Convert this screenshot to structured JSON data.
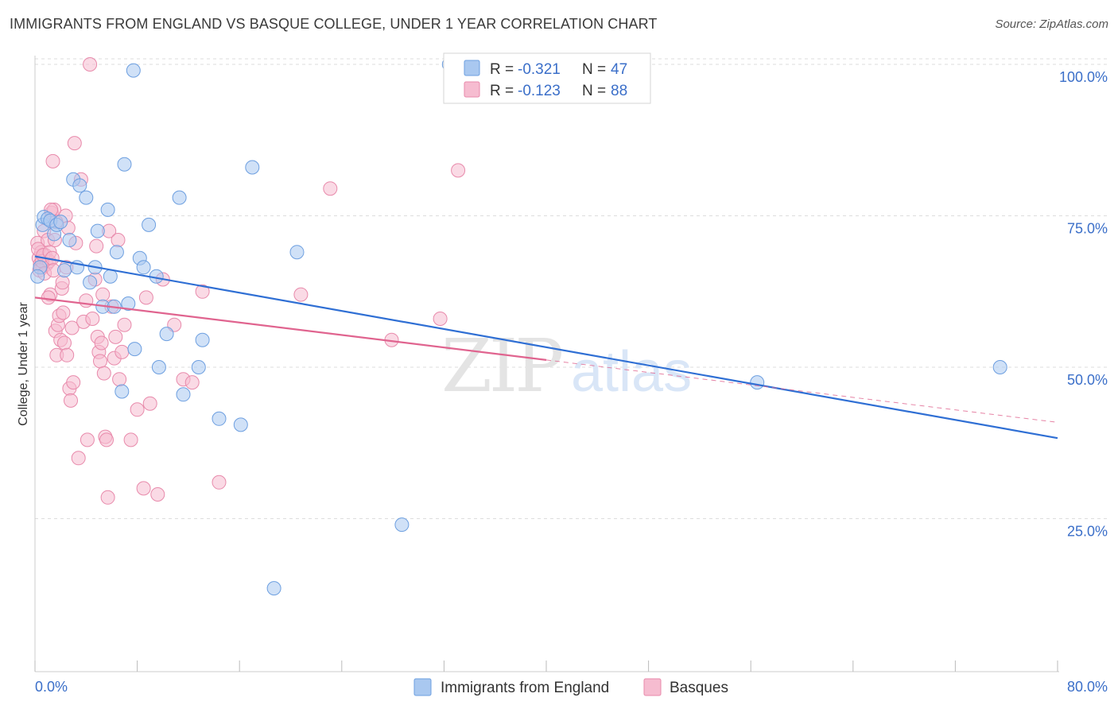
{
  "title": "IMMIGRANTS FROM ENGLAND VS BASQUE COLLEGE, UNDER 1 YEAR CORRELATION CHART",
  "source": "Source: ZipAtlas.com",
  "watermark": {
    "zip": "ZIP",
    "atlas": "atlas"
  },
  "colors": {
    "england_fill": "#a9c8f0",
    "england_stroke": "#6d9fe0",
    "england_line": "#2f6fd4",
    "basques_fill": "#f6bcd0",
    "basques_stroke": "#e88aab",
    "basques_line": "#e0648f",
    "tick_label": "#3b6fc9",
    "grid": "#dddddd"
  },
  "legend": {
    "rows": [
      {
        "r_label": "R = ",
        "r_value": "-0.321",
        "n_label": "N = ",
        "n_value": "47"
      },
      {
        "r_label": "R = ",
        "r_value": "-0.123",
        "n_label": "N = ",
        "n_value": "88"
      }
    ]
  },
  "chart_data": {
    "type": "scatter",
    "title": "IMMIGRANTS FROM ENGLAND VS BASQUE COLLEGE, UNDER 1 YEAR CORRELATION CHART",
    "xlabel": "",
    "ylabel": "College, Under 1 year",
    "xlim": [
      0,
      80
    ],
    "ylim": [
      0,
      105
    ],
    "x_tick_labels": [
      "0.0%",
      "80.0%"
    ],
    "y_ticks": [
      25,
      50,
      75,
      100
    ],
    "y_tick_labels": [
      "25.0%",
      "50.0%",
      "75.0%",
      "100.0%"
    ],
    "grid": true,
    "legend_position": "top-center",
    "series": [
      {
        "name": "Immigrants from England",
        "r": -0.321,
        "n": 47,
        "trend": {
          "x": [
            0,
            80
          ],
          "y": [
            68.3,
            38.3
          ]
        },
        "points": [
          [
            0.4,
            66.5
          ],
          [
            0.6,
            73.5
          ],
          [
            0.7,
            74.8
          ],
          [
            1.0,
            74.5
          ],
          [
            1.2,
            74.2
          ],
          [
            1.5,
            72.0
          ],
          [
            1.7,
            73.5
          ],
          [
            2.0,
            74.0
          ],
          [
            2.3,
            66.0
          ],
          [
            2.7,
            71.0
          ],
          [
            3.0,
            81.0
          ],
          [
            3.5,
            80.0
          ],
          [
            4.0,
            78.0
          ],
          [
            4.3,
            64.0
          ],
          [
            4.7,
            66.5
          ],
          [
            4.9,
            72.5
          ],
          [
            5.3,
            60.0
          ],
          [
            5.7,
            76.0
          ],
          [
            5.9,
            65.0
          ],
          [
            6.2,
            60.0
          ],
          [
            6.4,
            69.0
          ],
          [
            6.8,
            46.0
          ],
          [
            7.0,
            83.5
          ],
          [
            7.3,
            60.5
          ],
          [
            7.8,
            53.0
          ],
          [
            7.7,
            99.0
          ],
          [
            8.2,
            68.0
          ],
          [
            8.5,
            66.5
          ],
          [
            8.9,
            73.5
          ],
          [
            9.5,
            65.0
          ],
          [
            9.7,
            50.0
          ],
          [
            10.3,
            55.5
          ],
          [
            11.3,
            78.0
          ],
          [
            11.6,
            45.5
          ],
          [
            12.8,
            50.0
          ],
          [
            13.1,
            54.5
          ],
          [
            14.4,
            41.5
          ],
          [
            16.1,
            40.5
          ],
          [
            17.0,
            83.0
          ],
          [
            18.7,
            13.5
          ],
          [
            20.5,
            69.0
          ],
          [
            28.7,
            24.0
          ],
          [
            32.4,
            100.0
          ],
          [
            56.5,
            47.5
          ],
          [
            75.5,
            50.0
          ],
          [
            0.2,
            65.0
          ],
          [
            3.3,
            66.5
          ]
        ]
      },
      {
        "name": "Basques",
        "r": -0.123,
        "n": 88,
        "trend": {
          "x": [
            0,
            40
          ],
          "y": [
            61.5,
            51.2
          ]
        },
        "trend_extension": {
          "x": [
            40,
            80
          ],
          "y": [
            51.2,
            40.9
          ]
        },
        "points": [
          [
            0.2,
            70.5
          ],
          [
            0.3,
            68.0
          ],
          [
            0.4,
            67.0
          ],
          [
            0.5,
            69.0
          ],
          [
            0.6,
            66.5
          ],
          [
            0.7,
            72.5
          ],
          [
            0.8,
            68.5
          ],
          [
            0.9,
            67.0
          ],
          [
            1.0,
            71.0
          ],
          [
            1.1,
            67.5
          ],
          [
            1.2,
            62.0
          ],
          [
            1.3,
            75.5
          ],
          [
            1.4,
            84.0
          ],
          [
            1.5,
            76.0
          ],
          [
            1.6,
            56.0
          ],
          [
            1.7,
            52.0
          ],
          [
            1.8,
            57.0
          ],
          [
            1.9,
            58.5
          ],
          [
            2.0,
            54.5
          ],
          [
            2.1,
            63.0
          ],
          [
            2.2,
            59.0
          ],
          [
            2.3,
            54.0
          ],
          [
            2.4,
            75.0
          ],
          [
            2.5,
            52.0
          ],
          [
            2.6,
            73.0
          ],
          [
            2.7,
            46.5
          ],
          [
            2.8,
            44.5
          ],
          [
            2.9,
            56.5
          ],
          [
            3.0,
            47.5
          ],
          [
            3.1,
            87.0
          ],
          [
            3.2,
            70.5
          ],
          [
            3.4,
            35.0
          ],
          [
            3.6,
            81.0
          ],
          [
            3.8,
            57.5
          ],
          [
            4.0,
            61.0
          ],
          [
            4.1,
            38.0
          ],
          [
            4.3,
            100.0
          ],
          [
            4.5,
            58.0
          ],
          [
            4.7,
            64.5
          ],
          [
            4.8,
            70.0
          ],
          [
            4.9,
            55.0
          ],
          [
            5.0,
            52.5
          ],
          [
            5.1,
            51.0
          ],
          [
            5.2,
            54.0
          ],
          [
            5.3,
            62.0
          ],
          [
            5.4,
            49.0
          ],
          [
            5.5,
            38.5
          ],
          [
            5.6,
            38.0
          ],
          [
            5.7,
            28.5
          ],
          [
            5.8,
            72.5
          ],
          [
            6.0,
            60.0
          ],
          [
            6.2,
            51.5
          ],
          [
            6.3,
            55.0
          ],
          [
            6.5,
            71.0
          ],
          [
            6.6,
            48.0
          ],
          [
            6.8,
            52.5
          ],
          [
            7.0,
            57.0
          ],
          [
            7.5,
            38.0
          ],
          [
            8.0,
            43.0
          ],
          [
            8.5,
            30.0
          ],
          [
            9.0,
            44.0
          ],
          [
            9.6,
            29.0
          ],
          [
            10.0,
            64.5
          ],
          [
            10.9,
            57.0
          ],
          [
            11.6,
            48.0
          ],
          [
            12.3,
            47.5
          ],
          [
            13.1,
            62.5
          ],
          [
            14.4,
            31.0
          ],
          [
            20.8,
            62.0
          ],
          [
            23.1,
            79.5
          ],
          [
            27.9,
            54.5
          ],
          [
            31.7,
            58.0
          ],
          [
            33.1,
            82.5
          ],
          [
            0.25,
            69.5
          ],
          [
            0.35,
            66.0
          ],
          [
            0.55,
            67.5
          ],
          [
            0.65,
            68.5
          ],
          [
            0.75,
            65.5
          ],
          [
            1.05,
            61.5
          ],
          [
            1.15,
            69.0
          ],
          [
            1.25,
            76.0
          ],
          [
            1.35,
            68.0
          ],
          [
            1.45,
            66.0
          ],
          [
            1.55,
            71.0
          ],
          [
            1.65,
            74.0
          ],
          [
            2.15,
            64.0
          ],
          [
            2.45,
            66.5
          ],
          [
            8.7,
            61.5
          ]
        ]
      }
    ]
  }
}
